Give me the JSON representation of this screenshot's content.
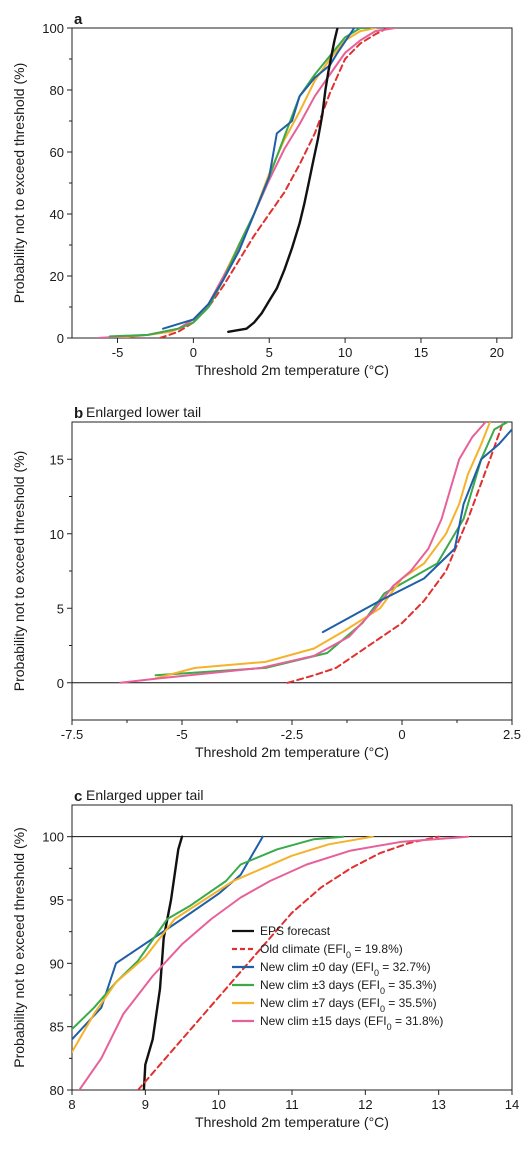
{
  "chart_data": [
    {
      "type": "line",
      "panel_label": "a",
      "title": "",
      "xlabel": "Threshold 2m temperature (°C)",
      "ylabel": "Probability not to exceed threshold (%)",
      "xlim": [
        -8,
        21
      ],
      "ylim": [
        0,
        100
      ],
      "xticks": [
        -5,
        0,
        5,
        10,
        15,
        20
      ],
      "yticks": [
        0,
        20,
        40,
        60,
        80,
        100
      ],
      "hline": [],
      "series": [
        {
          "key": "old",
          "points": [
            [
              -2.2,
              0
            ],
            [
              -1,
              2
            ],
            [
              0,
              5
            ],
            [
              1,
              10
            ],
            [
              2,
              17
            ],
            [
              3,
              25
            ],
            [
              4,
              33
            ],
            [
              5,
              40
            ],
            [
              6,
              47
            ],
            [
              7,
              56
            ],
            [
              8,
              66
            ],
            [
              9,
              79
            ],
            [
              10,
              90
            ],
            [
              11,
              95
            ],
            [
              12,
              98
            ],
            [
              12.8,
              100
            ]
          ]
        },
        {
          "key": "new7",
          "points": [
            [
              -5,
              0
            ],
            [
              -3,
              1
            ],
            [
              -1.5,
              2
            ],
            [
              0,
              5
            ],
            [
              1,
              11
            ],
            [
              2,
              20
            ],
            [
              3,
              30
            ],
            [
              4,
              40
            ],
            [
              5,
              53
            ],
            [
              6,
              64
            ],
            [
              7,
              73
            ],
            [
              8,
              83
            ],
            [
              9,
              90
            ],
            [
              10,
              96
            ],
            [
              11,
              99
            ],
            [
              12,
              100
            ]
          ]
        },
        {
          "key": "new15",
          "points": [
            [
              -6.3,
              0
            ],
            [
              -4.5,
              0.5
            ],
            [
              -3,
              1
            ],
            [
              -1,
              3
            ],
            [
              0,
              6
            ],
            [
              1,
              11
            ],
            [
              2,
              20
            ],
            [
              3,
              29
            ],
            [
              4,
              40
            ],
            [
              5,
              51
            ],
            [
              6,
              61
            ],
            [
              7,
              69
            ],
            [
              8,
              78
            ],
            [
              9,
              85
            ],
            [
              10,
              92
            ],
            [
              11,
              96
            ],
            [
              12,
              99
            ],
            [
              13.3,
              100
            ]
          ]
        },
        {
          "key": "new3",
          "points": [
            [
              -5.5,
              0.5
            ],
            [
              -3,
              1
            ],
            [
              -1,
              3
            ],
            [
              0,
              5
            ],
            [
              1,
              10
            ],
            [
              2,
              19
            ],
            [
              3,
              30
            ],
            [
              4,
              40
            ],
            [
              5,
              52
            ],
            [
              6,
              65
            ],
            [
              7,
              78
            ],
            [
              8,
              85
            ],
            [
              9,
              91
            ],
            [
              10,
              97
            ],
            [
              11,
              100
            ],
            [
              11.6,
              100
            ]
          ]
        },
        {
          "key": "new0",
          "points": [
            [
              -2,
              3
            ],
            [
              0,
              6
            ],
            [
              1,
              11
            ],
            [
              2,
              19
            ],
            [
              3,
              28
            ],
            [
              4,
              40
            ],
            [
              5,
              52
            ],
            [
              5.5,
              66
            ],
            [
              6.5,
              70
            ],
            [
              7,
              78
            ],
            [
              8,
              84
            ],
            [
              9,
              88
            ],
            [
              9.5,
              92
            ],
            [
              10.6,
              100
            ]
          ]
        },
        {
          "key": "eps",
          "points": [
            [
              2.3,
              2
            ],
            [
              3.5,
              3
            ],
            [
              4,
              5
            ],
            [
              4.5,
              8
            ],
            [
              5,
              12
            ],
            [
              5.5,
              16
            ],
            [
              6,
              22
            ],
            [
              6.5,
              29
            ],
            [
              7,
              37
            ],
            [
              7.3,
              43
            ],
            [
              7.6,
              50
            ],
            [
              7.9,
              57
            ],
            [
              8.2,
              64
            ],
            [
              8.5,
              72
            ],
            [
              8.7,
              80
            ],
            [
              8.9,
              86
            ],
            [
              9.1,
              91
            ],
            [
              9.3,
              96
            ],
            [
              9.5,
              100
            ]
          ]
        }
      ]
    },
    {
      "type": "line",
      "panel_label": "b",
      "title": "Enlarged lower tail",
      "xlabel": "Threshold 2m temperature (°C)",
      "ylabel": "Probability not to exceed threshold (%)",
      "xlim": [
        -7.5,
        2.5
      ],
      "ylim": [
        -2.5,
        17.5
      ],
      "xticks": [
        -7.5,
        -5,
        -2.5,
        0,
        2.5
      ],
      "xtick_labels": [
        "-7.5",
        "-5",
        "-2.5",
        "0",
        "2.5"
      ],
      "yticks": [
        0,
        5,
        10,
        15
      ],
      "hline": [
        0
      ],
      "series": [
        {
          "key": "old",
          "points": [
            [
              -2.6,
              0
            ],
            [
              -2,
              0.5
            ],
            [
              -1.5,
              1
            ],
            [
              -1,
              2
            ],
            [
              -0.5,
              3
            ],
            [
              0,
              4
            ],
            [
              0.5,
              5.5
            ],
            [
              1,
              7.5
            ],
            [
              1.5,
              11
            ],
            [
              2,
              15
            ],
            [
              2.3,
              17.5
            ]
          ]
        },
        {
          "key": "new3",
          "points": [
            [
              -5.6,
              0.5
            ],
            [
              -3.1,
              1
            ],
            [
              -1.7,
              2
            ],
            [
              -1.3,
              3
            ],
            [
              -0.9,
              4
            ],
            [
              -0.4,
              6
            ],
            [
              0.2,
              7
            ],
            [
              0.8,
              8
            ],
            [
              1.2,
              10
            ],
            [
              1.4,
              11
            ],
            [
              1.6,
              13
            ],
            [
              1.8,
              15
            ],
            [
              2.1,
              17
            ],
            [
              2.4,
              17.5
            ]
          ]
        },
        {
          "key": "new7",
          "points": [
            [
              -5.6,
              0.3
            ],
            [
              -4.7,
              1
            ],
            [
              -3.1,
              1.4
            ],
            [
              -2,
              2.3
            ],
            [
              -1.3,
              3.5
            ],
            [
              -0.5,
              5
            ],
            [
              0,
              7
            ],
            [
              0.5,
              8
            ],
            [
              1,
              10
            ],
            [
              1.3,
              12
            ],
            [
              1.5,
              14
            ],
            [
              1.8,
              16
            ],
            [
              2,
              17.5
            ]
          ]
        },
        {
          "key": "new15",
          "points": [
            [
              -6.4,
              0
            ],
            [
              -5.5,
              0.3
            ],
            [
              -4.5,
              0.6
            ],
            [
              -3.2,
              1
            ],
            [
              -2,
              1.8
            ],
            [
              -1.2,
              3.1
            ],
            [
              -0.6,
              5
            ],
            [
              -0.2,
              6.5
            ],
            [
              0.2,
              7.5
            ],
            [
              0.6,
              9
            ],
            [
              0.9,
              11
            ],
            [
              1.1,
              13
            ],
            [
              1.3,
              15
            ],
            [
              1.6,
              16.5
            ],
            [
              1.9,
              17.5
            ]
          ]
        },
        {
          "key": "new0",
          "points": [
            [
              -1.8,
              3.4
            ],
            [
              -0.5,
              5.5
            ],
            [
              0.5,
              7
            ],
            [
              1.2,
              9
            ],
            [
              1.4,
              12
            ],
            [
              1.8,
              15
            ],
            [
              2.2,
              16
            ],
            [
              2.5,
              17
            ]
          ]
        }
      ]
    },
    {
      "type": "line",
      "panel_label": "c",
      "title": "Enlarged upper tail",
      "xlabel": "Threshold 2m temperature (°C)",
      "ylabel": "Probability not to exceed threshold (%)",
      "xlim": [
        8,
        14
      ],
      "ylim": [
        80,
        102.5
      ],
      "xticks": [
        8,
        9,
        10,
        11,
        12,
        13,
        14
      ],
      "yticks": [
        80,
        85,
        90,
        95,
        100
      ],
      "hline": [
        100
      ],
      "series": [
        {
          "key": "eps",
          "points": [
            [
              8.98,
              80
            ],
            [
              9.0,
              82
            ],
            [
              9.1,
              84
            ],
            [
              9.2,
              88
            ],
            [
              9.25,
              92
            ],
            [
              9.35,
              95
            ],
            [
              9.45,
              99
            ],
            [
              9.5,
              100
            ]
          ]
        },
        {
          "key": "old",
          "points": [
            [
              8.9,
              80
            ],
            [
              9.2,
              82
            ],
            [
              9.5,
              84
            ],
            [
              9.8,
              86
            ],
            [
              10.1,
              88
            ],
            [
              10.4,
              90
            ],
            [
              10.7,
              92
            ],
            [
              11,
              94
            ],
            [
              11.4,
              96
            ],
            [
              11.8,
              97.5
            ],
            [
              12.2,
              98.7
            ],
            [
              12.6,
              99.5
            ],
            [
              13,
              100
            ]
          ]
        },
        {
          "key": "new0",
          "points": [
            [
              8,
              84
            ],
            [
              8.4,
              86.5
            ],
            [
              8.6,
              90
            ],
            [
              9.5,
              93.5
            ],
            [
              10,
              95.5
            ],
            [
              10.3,
              97
            ],
            [
              10.6,
              100
            ]
          ]
        },
        {
          "key": "new3",
          "points": [
            [
              8,
              84.8
            ],
            [
              8.3,
              86.5
            ],
            [
              8.6,
              88.5
            ],
            [
              8.9,
              90.2
            ],
            [
              9.3,
              93.5
            ],
            [
              9.6,
              94.5
            ],
            [
              10.1,
              96.5
            ],
            [
              10.3,
              97.8
            ],
            [
              10.8,
              99
            ],
            [
              11.3,
              99.8
            ],
            [
              11.7,
              100
            ]
          ]
        },
        {
          "key": "new7",
          "points": [
            [
              8,
              83
            ],
            [
              8.3,
              86
            ],
            [
              8.6,
              88.5
            ],
            [
              9,
              90.5
            ],
            [
              9.4,
              93.5
            ],
            [
              9.8,
              95
            ],
            [
              10.2,
              96.5
            ],
            [
              10.6,
              97.5
            ],
            [
              11,
              98.5
            ],
            [
              11.5,
              99.4
            ],
            [
              12.1,
              100
            ]
          ]
        },
        {
          "key": "new15",
          "points": [
            [
              8.1,
              80
            ],
            [
              8.4,
              82.5
            ],
            [
              8.7,
              86
            ],
            [
              9.1,
              89
            ],
            [
              9.5,
              91.5
            ],
            [
              9.9,
              93.5
            ],
            [
              10.3,
              95.2
            ],
            [
              10.7,
              96.5
            ],
            [
              11.2,
              97.8
            ],
            [
              11.8,
              98.9
            ],
            [
              12.5,
              99.6
            ],
            [
              13.4,
              100
            ]
          ]
        }
      ],
      "legend_position": "bottom-right"
    }
  ],
  "legend": [
    {
      "key": "eps",
      "label_html": "EPS forecast",
      "color": "#111111",
      "dashed": false
    },
    {
      "key": "old",
      "label_html": "Old climate (EFI<tspan baseline-shift=\"sub\" font-size=\"9\">0</tspan> = 19.8%)",
      "color": "#e03030",
      "dashed": true
    },
    {
      "key": "new0",
      "label_html": "New clim ±0 day (EFI<tspan baseline-shift=\"sub\" font-size=\"9\">0</tspan> = 32.7%)",
      "color": "#1f5fa8",
      "dashed": false
    },
    {
      "key": "new3",
      "label_html": "New clim ±3 days (EFI<tspan baseline-shift=\"sub\" font-size=\"9\">0</tspan> = 35.3%)",
      "color": "#3aaa4a",
      "dashed": false
    },
    {
      "key": "new7",
      "label_html": "New clim ±7 days (EFI<tspan baseline-shift=\"sub\" font-size=\"9\">0</tspan> = 35.5%)",
      "color": "#f5b22a",
      "dashed": false
    },
    {
      "key": "new15",
      "label_html": "New clim ±15 days (EFI<tspan baseline-shift=\"sub\" font-size=\"9\">0</tspan> = 31.8%)",
      "color": "#e8609a",
      "dashed": false
    }
  ]
}
